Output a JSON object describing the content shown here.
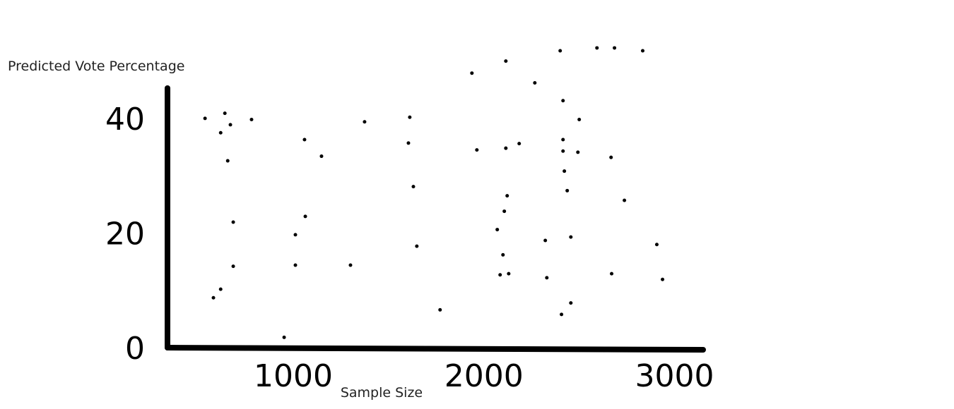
{
  "chart_data": {
    "type": "scatter",
    "xlabel": "Sample Size",
    "ylabel": "Predicted Vote Percentage",
    "xlim": [
      340,
      3150
    ],
    "ylim": [
      0,
      55
    ],
    "xticks": [
      1000,
      2000,
      3000
    ],
    "yticks": [
      0,
      20,
      40
    ],
    "grid": false,
    "color": "#000000",
    "x": [
      537,
      641,
      619,
      670,
      781,
      656,
      685,
      685,
      619,
      581,
      952,
      1059,
      1148,
      1063,
      1011,
      1011,
      1300,
      1374,
      1611,
      1604,
      1630,
      1648,
      1770,
      1937,
      2115,
      1963,
      2115,
      2185,
      2267,
      2122,
      2107,
      2070,
      2100,
      2085,
      2130,
      2400,
      2593,
      2685,
      2833,
      2415,
      2500,
      2415,
      2415,
      2493,
      2422,
      2437,
      2667,
      2737,
      2456,
      2322,
      2330,
      2670,
      2907,
      2937,
      2456,
      2407
    ],
    "y": [
      40.0,
      40.9,
      37.5,
      38.9,
      39.8,
      32.6,
      21.9,
      14.2,
      10.2,
      8.7,
      1.8,
      36.3,
      33.4,
      22.9,
      19.7,
      14.4,
      14.4,
      39.4,
      40.2,
      35.7,
      28.1,
      17.7,
      6.6,
      47.9,
      50.0,
      34.5,
      34.8,
      35.6,
      46.2,
      26.5,
      23.8,
      20.6,
      16.2,
      12.7,
      12.9,
      51.8,
      52.3,
      52.3,
      51.8,
      43.1,
      39.8,
      36.3,
      34.3,
      34.1,
      30.8,
      27.4,
      33.2,
      25.7,
      19.3,
      18.7,
      12.2,
      12.9,
      18.0,
      11.9,
      7.8,
      5.8
    ]
  }
}
